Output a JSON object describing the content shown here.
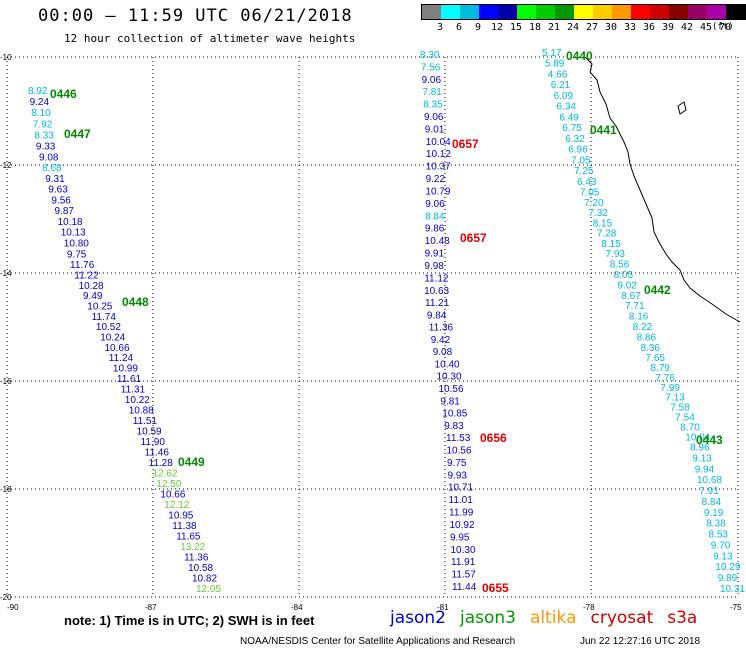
{
  "title": "00:00 – 11:59 UTC 06/21/2018",
  "subtitle": "12 hour collection of altimeter wave heights",
  "legend": {
    "colors": [
      "#808080",
      "#00ffff",
      "#00bbdd",
      "#0000ff",
      "#0000aa",
      "#00ff00",
      "#00cc00",
      "#009900",
      "#ffff00",
      "#ffcc00",
      "#ff9900",
      "#ff0000",
      "#cc0000",
      "#880000",
      "#990066",
      "#aa00aa",
      "#000000"
    ],
    "ticks": [
      "3",
      "6",
      "9",
      "12",
      "15",
      "18",
      "21",
      "24",
      "27",
      "30",
      "33",
      "36",
      "39",
      "42",
      "45",
      "70"
    ],
    "unit": "(ft)"
  },
  "map": {
    "lon_labels": [
      "-90",
      "-87",
      "-84",
      "-81",
      "-78",
      "-75"
    ],
    "lat_labels": [
      "-10",
      "-12",
      "-14",
      "-16",
      "-18",
      "-20"
    ],
    "lon_range": [
      -90,
      -75
    ],
    "lat_range": [
      -10,
      -20
    ]
  },
  "tracks": [
    {
      "color": "#0000cc",
      "labels": [
        {
          "time": "0446"
        },
        {
          "time": "0447"
        },
        {
          "time": "0448"
        },
        {
          "time": "0449"
        }
      ],
      "values": [
        "8.92",
        "9.24",
        "8.10",
        "7.92",
        "8.33",
        "9.33",
        "9.08",
        "8.68",
        "9.31",
        "9.63",
        "9.56",
        "9.87",
        "10.18",
        "10.13",
        "10.80",
        "9.75",
        "11.76",
        "11.22",
        "10.28",
        "9.49",
        "10.25",
        "11.74",
        "10.52",
        "10.24",
        "10.66",
        "11.24",
        "10.99",
        "11.61",
        "11.31",
        "10.22",
        "10.88",
        "11.51",
        "10.59",
        "11.90",
        "11.46",
        "11.28",
        "12.62",
        "12.50",
        "10.66",
        "12.12",
        "10.95",
        "11.38",
        "11.65",
        "13.22",
        "11.36",
        "10.58",
        "10.82",
        "12.05"
      ]
    },
    {
      "color": "#0000cc",
      "labels": [
        {
          "time": "0657"
        },
        {
          "time": "0657"
        },
        {
          "time": "0656"
        },
        {
          "time": "0655"
        }
      ],
      "values": [
        "8.30",
        "7.56",
        "9.06",
        "7.81",
        "8.35",
        "9.06",
        "9.01",
        "10.04",
        "10.12",
        "10.37",
        "9.22",
        "10.79",
        "9.06",
        "8.84",
        "9.86",
        "10.48",
        "9.91",
        "9.98",
        "11.12",
        "10.63",
        "11.21",
        "9.84",
        "11.36",
        "9.42",
        "9.08",
        "10.40",
        "10.30",
        "10.56",
        "9.81",
        "10.85",
        "9.83",
        "11.53",
        "10.56",
        "9.75",
        "9.93",
        "10.71",
        "11.01",
        "11.99",
        "10.92",
        "9.95",
        "10.30",
        "11.91",
        "11.57",
        "11.44"
      ]
    },
    {
      "color": "#00bbdd",
      "labels": [
        {
          "time": "0440"
        },
        {
          "time": "0441"
        },
        {
          "time": "0442"
        },
        {
          "time": "0443"
        }
      ],
      "values": [
        "5.17",
        "5.89",
        "4.66",
        "6.21",
        "6.09",
        "6.34",
        "6.49",
        "6.75",
        "6.32",
        "6.96",
        "7.05",
        "7.25",
        "6.43",
        "7.05",
        "7.20",
        "7.32",
        "8.15",
        "7.28",
        "8.15",
        "7.93",
        "8.56",
        "8.05",
        "9.02",
        "8.67",
        "7.71",
        "8.16",
        "8.22",
        "8.86",
        "8.36",
        "7.65",
        "8.79",
        "7.76",
        "7.99",
        "7.13",
        "7.58",
        "7.54",
        "8.70",
        "10.04",
        "8.96",
        "9.13",
        "9.94",
        "10.68",
        "7.91",
        "8.84",
        "9.19",
        "8.38",
        "8.53",
        "9.70",
        "9.13",
        "10.29",
        "9.89",
        "10.31"
      ]
    }
  ],
  "footer_note": "note: 1) Time is in UTC; 2) SWH is in feet",
  "satellites": [
    {
      "name": "jason2",
      "color": "#0000cc"
    },
    {
      "name": "jason3",
      "color": "#009900"
    },
    {
      "name": "altika",
      "color": "#ff9900"
    },
    {
      "name": "cryosat",
      "color": "#cc0000"
    },
    {
      "name": "s3a",
      "color": "#cc0000"
    }
  ],
  "credit": "NOAA/NESDIS Center for Satellite Applications and Research",
  "timestamp": "Jun 22 12:27:16 UTC 2018"
}
